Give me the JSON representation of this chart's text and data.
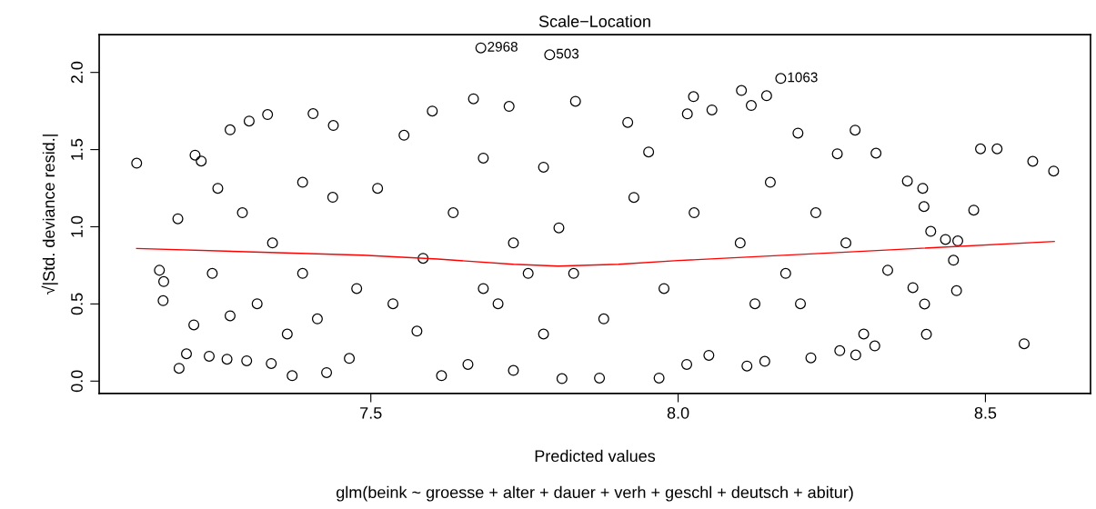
{
  "chart_data": {
    "type": "scatter",
    "title": "Scale−Location",
    "xlabel": "Predicted values",
    "ylabel": "√|Std. deviance resid.|",
    "xlim": [
      7.058,
      8.671
    ],
    "ylim": [
      -0.08,
      2.245
    ],
    "xticks": [
      7.5,
      {
        "value": 8,
        "label": "8.0"
      },
      8.5
    ],
    "yticks": [
      {
        "value": 0,
        "label": "0.0"
      },
      0.5,
      {
        "value": 1,
        "label": "1.0"
      },
      1.5,
      {
        "value": 2,
        "label": "2.0"
      }
    ],
    "grid": false,
    "marker": "circle",
    "series": [
      {
        "color": "#000000",
        "x": [
          7.119,
          7.156,
          7.163,
          7.162,
          7.188,
          7.2,
          7.186,
          7.214,
          7.224,
          7.271,
          7.302,
          7.332,
          7.406,
          7.439,
          7.212,
          7.237,
          7.266,
          7.298,
          7.338,
          7.372,
          7.428,
          7.465,
          7.251,
          7.291,
          7.34,
          7.389,
          7.315,
          7.364,
          7.413,
          7.438,
          7.242,
          7.389,
          7.271,
          7.477,
          7.575,
          7.615,
          7.667,
          7.6,
          7.725,
          7.833,
          7.918,
          8.025,
          8.015,
          7.554,
          7.683,
          7.781,
          7.634,
          7.732,
          7.83,
          7.707,
          7.781,
          7.879,
          7.977,
          7.928,
          8.026,
          7.585,
          7.536,
          7.658,
          7.732,
          7.811,
          7.872,
          7.969,
          8.014,
          7.756,
          7.806,
          7.683,
          8.05,
          7.952,
          7.511,
          8.055,
          8.103,
          8.144,
          8.119,
          8.288,
          8.195,
          8.259,
          8.322,
          8.492,
          8.519,
          8.577,
          8.611,
          8.481,
          8.373,
          8.398,
          8.4,
          8.455,
          8.435,
          8.448,
          8.453,
          8.563,
          8.404,
          8.401,
          8.382,
          8.341,
          8.289,
          8.32,
          8.263,
          8.216,
          8.112,
          8.141,
          8.224,
          8.175,
          8.125,
          8.273,
          8.199,
          8.101,
          8.15,
          8.302,
          8.411,
          7.679,
          7.791,
          8.167
        ],
        "values": [
          1.412,
          0.718,
          0.645,
          0.521,
          0.083,
          0.177,
          1.052,
          1.464,
          1.426,
          1.628,
          1.685,
          1.727,
          1.733,
          1.656,
          0.364,
          0.161,
          0.142,
          0.132,
          0.114,
          0.035,
          0.055,
          0.147,
          1.249,
          1.091,
          0.895,
          0.698,
          0.501,
          0.305,
          0.403,
          1.191,
          0.698,
          1.288,
          0.423,
          0.6,
          0.324,
          0.035,
          1.829,
          1.75,
          1.78,
          1.813,
          1.676,
          1.843,
          1.731,
          1.593,
          1.445,
          1.386,
          1.091,
          0.895,
          0.698,
          0.501,
          0.305,
          0.403,
          0.6,
          1.19,
          1.091,
          0.796,
          0.501,
          0.108,
          0.069,
          0.016,
          0.02,
          0.02,
          0.108,
          0.698,
          0.993,
          0.6,
          0.167,
          1.485,
          1.249,
          1.757,
          1.883,
          1.849,
          1.786,
          1.626,
          1.607,
          1.473,
          1.477,
          1.505,
          1.505,
          1.424,
          1.361,
          1.108,
          1.296,
          1.249,
          1.131,
          0.908,
          0.918,
          0.783,
          0.586,
          0.242,
          0.303,
          0.5,
          0.606,
          0.718,
          0.169,
          0.228,
          0.197,
          0.151,
          0.098,
          0.128,
          1.091,
          0.698,
          0.501,
          0.895,
          0.501,
          0.895,
          1.288,
          0.305,
          0.97,
          2.159,
          2.114,
          1.961
        ]
      },
      {
        "type": "line",
        "color": "#ff0000",
        "marker": "none",
        "x": [
          7.119,
          7.487,
          7.609,
          7.732,
          7.805,
          7.903,
          8.0,
          8.075,
          8.273,
          8.612
        ],
        "values": [
          0.859,
          0.816,
          0.791,
          0.757,
          0.745,
          0.757,
          0.781,
          0.796,
          0.836,
          0.905
        ]
      }
    ],
    "annotations": [
      {
        "text": "2968",
        "x": 7.679,
        "y": 2.159
      },
      {
        "text": "503",
        "x": 7.791,
        "y": 2.114
      },
      {
        "text": "1063",
        "x": 8.167,
        "y": 1.961
      },
      "glm(beink ~ groesse + alter + dauer + verh + geschl + deutsch + abitur)"
    ]
  }
}
